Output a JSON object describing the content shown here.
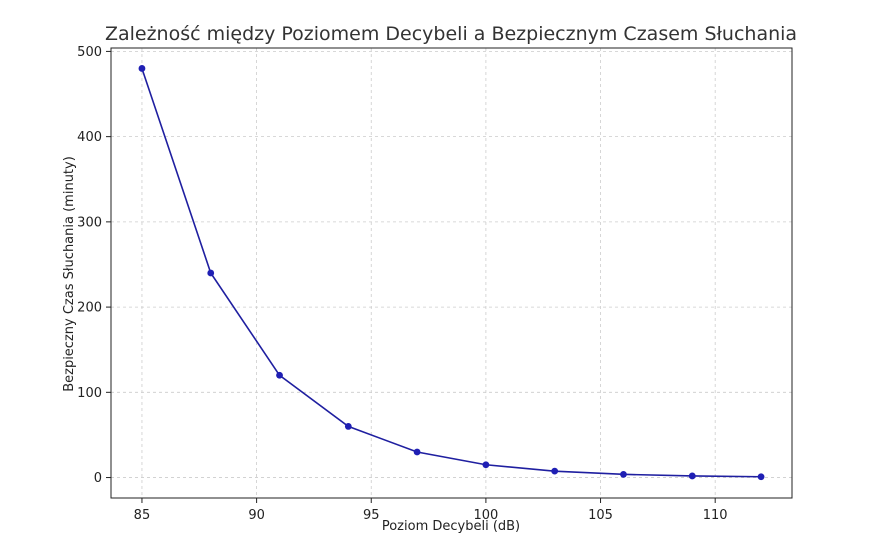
{
  "chart_data": {
    "type": "line",
    "title": "Zależność między Poziomem Decybeli a Bezpiecznym Czasem Słuchania",
    "xlabel": "Poziom Decybeli (dB)",
    "ylabel": "Bezpieczny Czas Słuchania (minuty)",
    "xlim": [
      83.65,
      113.35
    ],
    "ylim": [
      -24,
      504
    ],
    "xticks": [
      85,
      90,
      95,
      100,
      105,
      110
    ],
    "yticks": [
      0,
      100,
      200,
      300,
      400,
      500
    ],
    "grid": true,
    "series": [
      {
        "color": "#1f1fb4",
        "x": [
          85,
          88,
          91,
          94,
          97,
          100,
          103,
          106,
          109,
          112
        ],
        "y": [
          480,
          240,
          120,
          60,
          30,
          15,
          7.5,
          3.75,
          1.875,
          0.9375
        ]
      }
    ]
  }
}
